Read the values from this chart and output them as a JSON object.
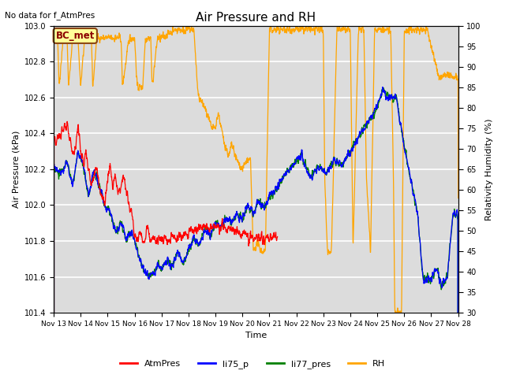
{
  "title": "Air Pressure and RH",
  "top_left_text": "No data for f_AtmPres",
  "xlabel": "Time",
  "ylabel_left": "Air Pressure (kPa)",
  "ylabel_right": "Relativity Humidity (%)",
  "ylim_left": [
    101.4,
    103.0
  ],
  "ylim_right": [
    30,
    100
  ],
  "yticks_left": [
    101.4,
    101.6,
    101.8,
    102.0,
    102.2,
    102.4,
    102.6,
    102.8,
    103.0
  ],
  "yticks_right": [
    30,
    35,
    40,
    45,
    50,
    55,
    60,
    65,
    70,
    75,
    80,
    85,
    90,
    95,
    100
  ],
  "xtick_labels": [
    "Nov 13",
    "Nov 14",
    "Nov 15",
    "Nov 16",
    "Nov 17",
    "Nov 18",
    "Nov 19",
    "Nov 20",
    "Nov 21",
    "Nov 22",
    "Nov 23",
    "Nov 24",
    "Nov 25",
    "Nov 26",
    "Nov 27",
    "Nov 28"
  ],
  "legend_entries": [
    "AtmPres",
    "li75_p",
    "li77_pres",
    "RH"
  ],
  "legend_colors": [
    "red",
    "blue",
    "green",
    "orange"
  ],
  "annotation_text": "BC_met",
  "annotation_box_color": "#FFFF99",
  "annotation_box_edge": "#8B4513",
  "bg_color": "#DCDCDC",
  "grid_color": "white",
  "figsize": [
    6.4,
    4.8
  ],
  "dpi": 100
}
